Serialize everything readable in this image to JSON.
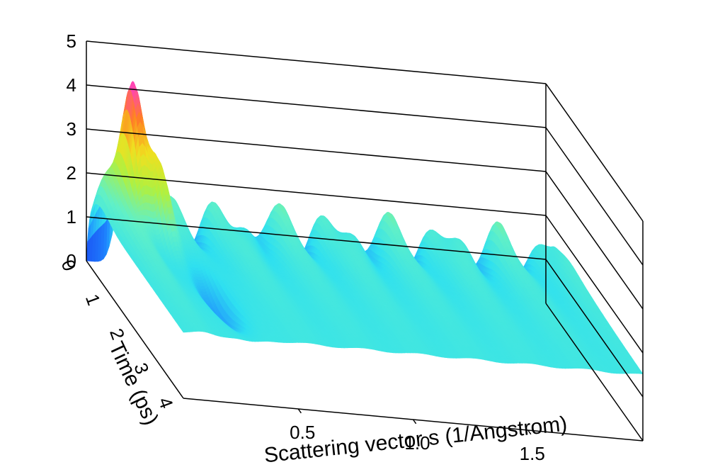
{
  "chart_data": {
    "type": "surface3d",
    "title": "",
    "xlabel": "Scattering vector s (1/Angstrom)",
    "ylabel": "Time (ps)",
    "zlabel": "",
    "xlim": [
      0.0,
      2.0
    ],
    "ylim": [
      0,
      4
    ],
    "zlim": [
      0,
      5
    ],
    "x_ticks": [
      0.5,
      1.0,
      1.5
    ],
    "x_tick_labels": [
      "0.5",
      "1.0",
      "1.5"
    ],
    "y_ticks": [
      0,
      1,
      2,
      3,
      4
    ],
    "y_tick_labels": [
      "0",
      "1",
      "2",
      "3",
      "4"
    ],
    "z_ticks": [
      0,
      1,
      2,
      3,
      4,
      5
    ],
    "z_tick_labels": [
      "0",
      "1",
      "2",
      "3",
      "4",
      "5"
    ],
    "grid": true,
    "colormap": [
      "#1a3cf0",
      "#1f8cff",
      "#2fe0f0",
      "#60f0c8",
      "#b0f040",
      "#f0e020",
      "#ff8020",
      "#ff40c0"
    ],
    "peak": {
      "x": 0.15,
      "y": 0.5,
      "z": 4.5
    },
    "secondary_peak": {
      "x": 0.22,
      "y": 0.9,
      "z": 3.2
    },
    "plateau_z": 1.5
  }
}
